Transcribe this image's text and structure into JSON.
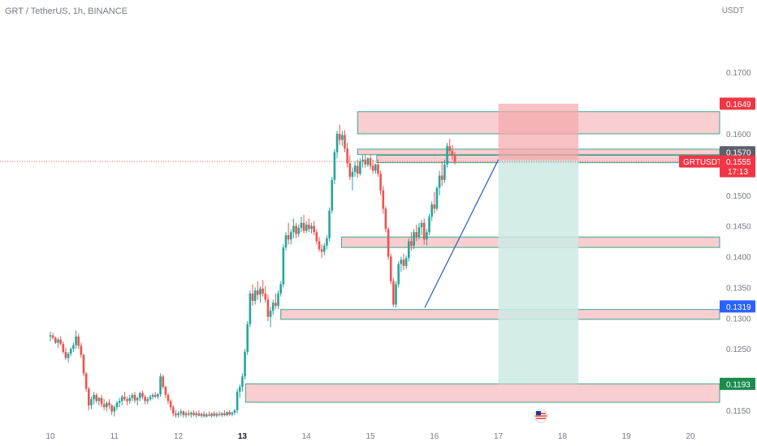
{
  "header": {
    "title": "GRT / TetherUS, 1h, BINANCE",
    "currency": "USDT"
  },
  "colors": {
    "up": "#26a69a",
    "down": "#ef5350",
    "zone_fill": "#f7c5c8",
    "zone_border": "#3fa58f",
    "target_fill": "#cdeae4",
    "stop_fill": "#f5a8ad",
    "trendline": "#3566c6",
    "axis_text": "#787b86"
  },
  "chart_data": {
    "type": "candlestick",
    "title": "GRT / TetherUS, 1h, BINANCE",
    "ylabel": "USDT",
    "ylim": [
      0.1138,
      0.1765
    ],
    "x_ticks": [
      "10",
      "11",
      "12",
      "13",
      "14",
      "15",
      "16",
      "17",
      "18",
      "19",
      "20"
    ],
    "y_ticks": [
      "0.1700",
      "0.1600",
      "0.1500",
      "0.1450",
      "0.1400",
      "0.1350",
      "0.1300",
      "0.1250",
      "0.1150"
    ],
    "price_labels": [
      {
        "value": "0.1649",
        "price": 0.1649,
        "kind": "red"
      },
      {
        "value": "0.1570",
        "price": 0.157,
        "kind": "grey"
      },
      {
        "value": "0.1554",
        "price": 0.1554,
        "kind": "blue"
      },
      {
        "value": "0.1319",
        "price": 0.1319,
        "kind": "blue"
      },
      {
        "value": "0.1193",
        "price": 0.1193,
        "kind": "green"
      }
    ],
    "last_price": {
      "symbol": "GRTUSDT",
      "value": "0.1555",
      "countdown": "17:13",
      "price": 0.1555
    },
    "zones": [
      {
        "start": "14.8",
        "end": "20.5",
        "low": 0.16,
        "high": 0.1636
      },
      {
        "start": "14.8",
        "end": "20.5",
        "low": 0.1566,
        "high": 0.1575
      },
      {
        "start": "15.1",
        "end": "20.5",
        "low": 0.1553,
        "high": 0.1565
      },
      {
        "start": "14.55",
        "end": "20.5",
        "low": 0.1415,
        "high": 0.1432
      },
      {
        "start": "13.6",
        "end": "20.5",
        "low": 0.1298,
        "high": 0.1314
      },
      {
        "start": "13.05",
        "end": "20.5",
        "low": 0.1163,
        "high": 0.1193
      }
    ],
    "position": {
      "start": "17.0",
      "end": "18.25",
      "entry": 0.1557,
      "stop": 0.1649,
      "target": 0.1193
    },
    "trendline": {
      "x1": "15.85",
      "y1": 0.1317,
      "x2": "17.0",
      "y2": 0.1558
    },
    "candles_ohlc": [
      [
        10.0,
        0.127,
        0.1278,
        0.1262,
        0.1272
      ],
      [
        10.04,
        0.1272,
        0.1276,
        0.1265,
        0.1268
      ],
      [
        10.08,
        0.1268,
        0.127,
        0.1258,
        0.126
      ],
      [
        10.12,
        0.126,
        0.1268,
        0.1252,
        0.1265
      ],
      [
        10.16,
        0.1265,
        0.127,
        0.1255,
        0.1258
      ],
      [
        10.2,
        0.1258,
        0.1262,
        0.1242,
        0.1245
      ],
      [
        10.24,
        0.1245,
        0.1252,
        0.1232,
        0.1235
      ],
      [
        10.28,
        0.1235,
        0.1245,
        0.1228,
        0.1242
      ],
      [
        10.32,
        0.1242,
        0.1252,
        0.1238,
        0.125
      ],
      [
        10.36,
        0.125,
        0.126,
        0.1245,
        0.1256
      ],
      [
        10.4,
        0.1256,
        0.128,
        0.125,
        0.127
      ],
      [
        10.44,
        0.127,
        0.1275,
        0.125,
        0.1255
      ],
      [
        10.48,
        0.1255,
        0.126,
        0.1235,
        0.124
      ],
      [
        10.52,
        0.124,
        0.1242,
        0.1205,
        0.121
      ],
      [
        10.56,
        0.121,
        0.1212,
        0.118,
        0.1185
      ],
      [
        10.6,
        0.1185,
        0.1188,
        0.115,
        0.1158
      ],
      [
        10.64,
        0.1158,
        0.1172,
        0.1152,
        0.1168
      ],
      [
        10.68,
        0.1168,
        0.118,
        0.116,
        0.1175
      ],
      [
        10.72,
        0.1175,
        0.1178,
        0.1162,
        0.1165
      ],
      [
        10.76,
        0.1165,
        0.1172,
        0.1158,
        0.117
      ],
      [
        10.8,
        0.117,
        0.1175,
        0.1155,
        0.116
      ],
      [
        10.84,
        0.116,
        0.1168,
        0.115,
        0.1155
      ],
      [
        10.88,
        0.1155,
        0.1165,
        0.1148,
        0.1162
      ],
      [
        10.92,
        0.1162,
        0.1168,
        0.1152,
        0.1158
      ],
      [
        10.96,
        0.1158,
        0.116,
        0.1142,
        0.1148
      ],
      [
        11.0,
        0.1148,
        0.1158,
        0.114,
        0.1155
      ],
      [
        11.04,
        0.1155,
        0.1165,
        0.115,
        0.1162
      ],
      [
        11.08,
        0.1162,
        0.117,
        0.1155,
        0.1165
      ],
      [
        11.12,
        0.1165,
        0.1175,
        0.1158,
        0.1172
      ],
      [
        11.16,
        0.1172,
        0.118,
        0.1165,
        0.1168
      ],
      [
        11.2,
        0.1168,
        0.1172,
        0.1158,
        0.1165
      ],
      [
        11.24,
        0.1165,
        0.1175,
        0.116,
        0.117
      ],
      [
        11.28,
        0.117,
        0.1178,
        0.1165,
        0.1175
      ],
      [
        11.32,
        0.1175,
        0.118,
        0.1162,
        0.1166
      ],
      [
        11.36,
        0.1166,
        0.1172,
        0.1158,
        0.117
      ],
      [
        11.4,
        0.117,
        0.118,
        0.1165,
        0.1178
      ],
      [
        11.44,
        0.1178,
        0.1182,
        0.1168,
        0.1172
      ],
      [
        11.48,
        0.1172,
        0.1175,
        0.116,
        0.1165
      ],
      [
        11.52,
        0.1165,
        0.1172,
        0.116,
        0.1168
      ],
      [
        11.56,
        0.1168,
        0.1175,
        0.1165,
        0.1172
      ],
      [
        11.6,
        0.1172,
        0.1178,
        0.1168,
        0.1175
      ],
      [
        11.64,
        0.1175,
        0.118,
        0.117,
        0.1172
      ],
      [
        11.68,
        0.1172,
        0.1178,
        0.1168,
        0.1176
      ],
      [
        11.72,
        0.1176,
        0.121,
        0.1172,
        0.1205
      ],
      [
        11.76,
        0.1205,
        0.1208,
        0.1185,
        0.1188
      ],
      [
        11.8,
        0.1188,
        0.119,
        0.117,
        0.1175
      ],
      [
        11.84,
        0.1175,
        0.1178,
        0.116,
        0.1165
      ],
      [
        11.88,
        0.1165,
        0.1168,
        0.115,
        0.1155
      ],
      [
        11.92,
        0.1155,
        0.1158,
        0.114,
        0.1145
      ],
      [
        11.96,
        0.1145,
        0.115,
        0.1138,
        0.1142
      ],
      [
        12.0,
        0.1142,
        0.1148,
        0.1138,
        0.1145
      ],
      [
        12.04,
        0.1145,
        0.1152,
        0.114,
        0.1148
      ],
      [
        12.08,
        0.1148,
        0.115,
        0.1138,
        0.1142
      ],
      [
        12.12,
        0.1142,
        0.1148,
        0.1138,
        0.1145
      ],
      [
        12.16,
        0.1145,
        0.115,
        0.114,
        0.1143
      ],
      [
        12.2,
        0.1143,
        0.1148,
        0.1138,
        0.1146
      ],
      [
        12.24,
        0.1146,
        0.115,
        0.114,
        0.1142
      ],
      [
        12.28,
        0.1142,
        0.1148,
        0.1138,
        0.1145
      ],
      [
        12.32,
        0.1145,
        0.115,
        0.114,
        0.1141
      ],
      [
        12.36,
        0.1141,
        0.1146,
        0.1138,
        0.1144
      ],
      [
        12.4,
        0.1144,
        0.1148,
        0.1138,
        0.114
      ],
      [
        12.44,
        0.114,
        0.1146,
        0.1138,
        0.1143
      ],
      [
        12.48,
        0.1143,
        0.1148,
        0.114,
        0.1141
      ],
      [
        12.52,
        0.1141,
        0.1146,
        0.1138,
        0.1145
      ],
      [
        12.56,
        0.1145,
        0.1148,
        0.1139,
        0.1141
      ],
      [
        12.6,
        0.1141,
        0.1147,
        0.1138,
        0.1144
      ],
      [
        12.64,
        0.1144,
        0.1148,
        0.114,
        0.1142
      ],
      [
        12.68,
        0.1142,
        0.1147,
        0.1139,
        0.1145
      ],
      [
        12.72,
        0.1145,
        0.115,
        0.114,
        0.1142
      ],
      [
        12.76,
        0.1142,
        0.1148,
        0.114,
        0.1147
      ],
      [
        12.8,
        0.1147,
        0.115,
        0.1141,
        0.1143
      ],
      [
        12.84,
        0.1143,
        0.1148,
        0.114,
        0.1146
      ],
      [
        12.88,
        0.1146,
        0.1152,
        0.1142,
        0.115
      ],
      [
        12.92,
        0.115,
        0.1185,
        0.1145,
        0.118
      ],
      [
        12.96,
        0.118,
        0.1192,
        0.117,
        0.1188
      ],
      [
        13.0,
        0.1188,
        0.121,
        0.118,
        0.1205
      ],
      [
        13.04,
        0.1205,
        0.125,
        0.12,
        0.1245
      ],
      [
        13.08,
        0.1245,
        0.1295,
        0.124,
        0.129
      ],
      [
        13.12,
        0.129,
        0.1345,
        0.1285,
        0.134
      ],
      [
        13.16,
        0.134,
        0.1355,
        0.132,
        0.1328
      ],
      [
        13.2,
        0.1328,
        0.135,
        0.1322,
        0.1345
      ],
      [
        13.24,
        0.1345,
        0.136,
        0.133,
        0.1338
      ],
      [
        13.28,
        0.1338,
        0.1352,
        0.1325,
        0.1348
      ],
      [
        13.32,
        0.1348,
        0.1362,
        0.1335,
        0.134
      ],
      [
        13.36,
        0.134,
        0.1352,
        0.1325,
        0.133
      ],
      [
        13.4,
        0.133,
        0.1338,
        0.1295,
        0.1302
      ],
      [
        13.44,
        0.1302,
        0.1318,
        0.1285,
        0.1312
      ],
      [
        13.48,
        0.1312,
        0.133,
        0.1305,
        0.1325
      ],
      [
        13.52,
        0.1325,
        0.134,
        0.1315,
        0.132
      ],
      [
        13.56,
        0.132,
        0.1345,
        0.1315,
        0.134
      ],
      [
        13.6,
        0.134,
        0.136,
        0.1335,
        0.1355
      ],
      [
        13.64,
        0.1355,
        0.142,
        0.135,
        0.1415
      ],
      [
        13.68,
        0.1415,
        0.144,
        0.141,
        0.1435
      ],
      [
        13.72,
        0.1435,
        0.1455,
        0.142,
        0.1428
      ],
      [
        13.76,
        0.1428,
        0.1445,
        0.142,
        0.144
      ],
      [
        13.8,
        0.144,
        0.1462,
        0.143,
        0.145
      ],
      [
        13.84,
        0.145,
        0.1455,
        0.143,
        0.1437
      ],
      [
        13.88,
        0.1437,
        0.1452,
        0.1432,
        0.1447
      ],
      [
        13.92,
        0.1447,
        0.1465,
        0.144,
        0.1455
      ],
      [
        13.96,
        0.1455,
        0.1468,
        0.1438,
        0.1442
      ],
      [
        14.0,
        0.1442,
        0.1458,
        0.1438,
        0.1452
      ],
      [
        14.04,
        0.1452,
        0.1462,
        0.144,
        0.1445
      ],
      [
        14.08,
        0.1445,
        0.1455,
        0.1438,
        0.145
      ],
      [
        14.12,
        0.145,
        0.1458,
        0.1435,
        0.144
      ],
      [
        14.16,
        0.144,
        0.1445,
        0.142,
        0.1425
      ],
      [
        14.2,
        0.1425,
        0.1432,
        0.1408,
        0.1412
      ],
      [
        14.24,
        0.1412,
        0.142,
        0.1398,
        0.1408
      ],
      [
        14.28,
        0.1408,
        0.1422,
        0.1402,
        0.1418
      ],
      [
        14.32,
        0.1418,
        0.1435,
        0.1412,
        0.143
      ],
      [
        14.36,
        0.143,
        0.148,
        0.1425,
        0.1475
      ],
      [
        14.4,
        0.1475,
        0.153,
        0.147,
        0.1525
      ],
      [
        14.44,
        0.1525,
        0.1575,
        0.1518,
        0.157
      ],
      [
        14.48,
        0.157,
        0.1605,
        0.156,
        0.16
      ],
      [
        14.52,
        0.16,
        0.1615,
        0.1582,
        0.159
      ],
      [
        14.56,
        0.159,
        0.1605,
        0.158,
        0.1598
      ],
      [
        14.6,
        0.1598,
        0.1606,
        0.157,
        0.1576
      ],
      [
        14.64,
        0.1576,
        0.1585,
        0.1545,
        0.1552
      ],
      [
        14.68,
        0.1552,
        0.1565,
        0.1525,
        0.153
      ],
      [
        14.72,
        0.153,
        0.1545,
        0.1508,
        0.1538
      ],
      [
        14.76,
        0.1538,
        0.1555,
        0.153,
        0.1548
      ],
      [
        14.8,
        0.1548,
        0.1558,
        0.1528,
        0.1535
      ],
      [
        14.84,
        0.1535,
        0.156,
        0.1532,
        0.1555
      ],
      [
        14.88,
        0.1555,
        0.1565,
        0.1545,
        0.1558
      ],
      [
        14.92,
        0.1558,
        0.1566,
        0.1545,
        0.155
      ],
      [
        14.96,
        0.155,
        0.1562,
        0.1546,
        0.156
      ],
      [
        15.0,
        0.156,
        0.1566,
        0.1542,
        0.1548
      ],
      [
        15.04,
        0.1548,
        0.1558,
        0.1535,
        0.154
      ],
      [
        15.08,
        0.154,
        0.1552,
        0.1535,
        0.155
      ],
      [
        15.12,
        0.155,
        0.1558,
        0.153,
        0.1535
      ],
      [
        15.16,
        0.1535,
        0.154,
        0.15,
        0.1508
      ],
      [
        15.2,
        0.1508,
        0.1515,
        0.147,
        0.1478
      ],
      [
        15.24,
        0.1478,
        0.1482,
        0.144,
        0.1445
      ],
      [
        15.28,
        0.1445,
        0.1448,
        0.1395,
        0.14
      ],
      [
        15.32,
        0.14,
        0.1405,
        0.1355,
        0.136
      ],
      [
        15.36,
        0.136,
        0.1365,
        0.1318,
        0.1322
      ],
      [
        15.4,
        0.1322,
        0.136,
        0.1317,
        0.1355
      ],
      [
        15.44,
        0.1355,
        0.1392,
        0.135,
        0.1388
      ],
      [
        15.48,
        0.1388,
        0.14,
        0.1375,
        0.1395
      ],
      [
        15.52,
        0.1395,
        0.1405,
        0.1378,
        0.1385
      ],
      [
        15.56,
        0.1385,
        0.1402,
        0.138,
        0.1398
      ],
      [
        15.6,
        0.1398,
        0.143,
        0.1392,
        0.1425
      ],
      [
        15.64,
        0.1425,
        0.144,
        0.141,
        0.1418
      ],
      [
        15.68,
        0.1418,
        0.1445,
        0.1412,
        0.144
      ],
      [
        15.72,
        0.144,
        0.1452,
        0.1425,
        0.1432
      ],
      [
        15.76,
        0.1432,
        0.1455,
        0.1428,
        0.1448
      ],
      [
        15.8,
        0.1448,
        0.146,
        0.1435,
        0.1455
      ],
      [
        15.84,
        0.1455,
        0.1462,
        0.142,
        0.1428
      ],
      [
        15.88,
        0.1428,
        0.1445,
        0.1418,
        0.144
      ],
      [
        15.92,
        0.144,
        0.147,
        0.1435,
        0.1465
      ],
      [
        15.96,
        0.1465,
        0.149,
        0.1458,
        0.1485
      ],
      [
        16.0,
        0.1485,
        0.1505,
        0.147,
        0.1478
      ],
      [
        16.04,
        0.1478,
        0.1515,
        0.1475,
        0.1512
      ],
      [
        16.08,
        0.1512,
        0.154,
        0.15,
        0.1532
      ],
      [
        16.12,
        0.1532,
        0.1555,
        0.1515,
        0.1525
      ],
      [
        16.16,
        0.1525,
        0.1558,
        0.152,
        0.155
      ],
      [
        16.2,
        0.155,
        0.1585,
        0.1545,
        0.158
      ],
      [
        16.24,
        0.158,
        0.1592,
        0.1565,
        0.1572
      ],
      [
        16.28,
        0.1572,
        0.1582,
        0.1558,
        0.1565
      ],
      [
        16.32,
        0.1565,
        0.157,
        0.155,
        0.1555
      ]
    ]
  }
}
